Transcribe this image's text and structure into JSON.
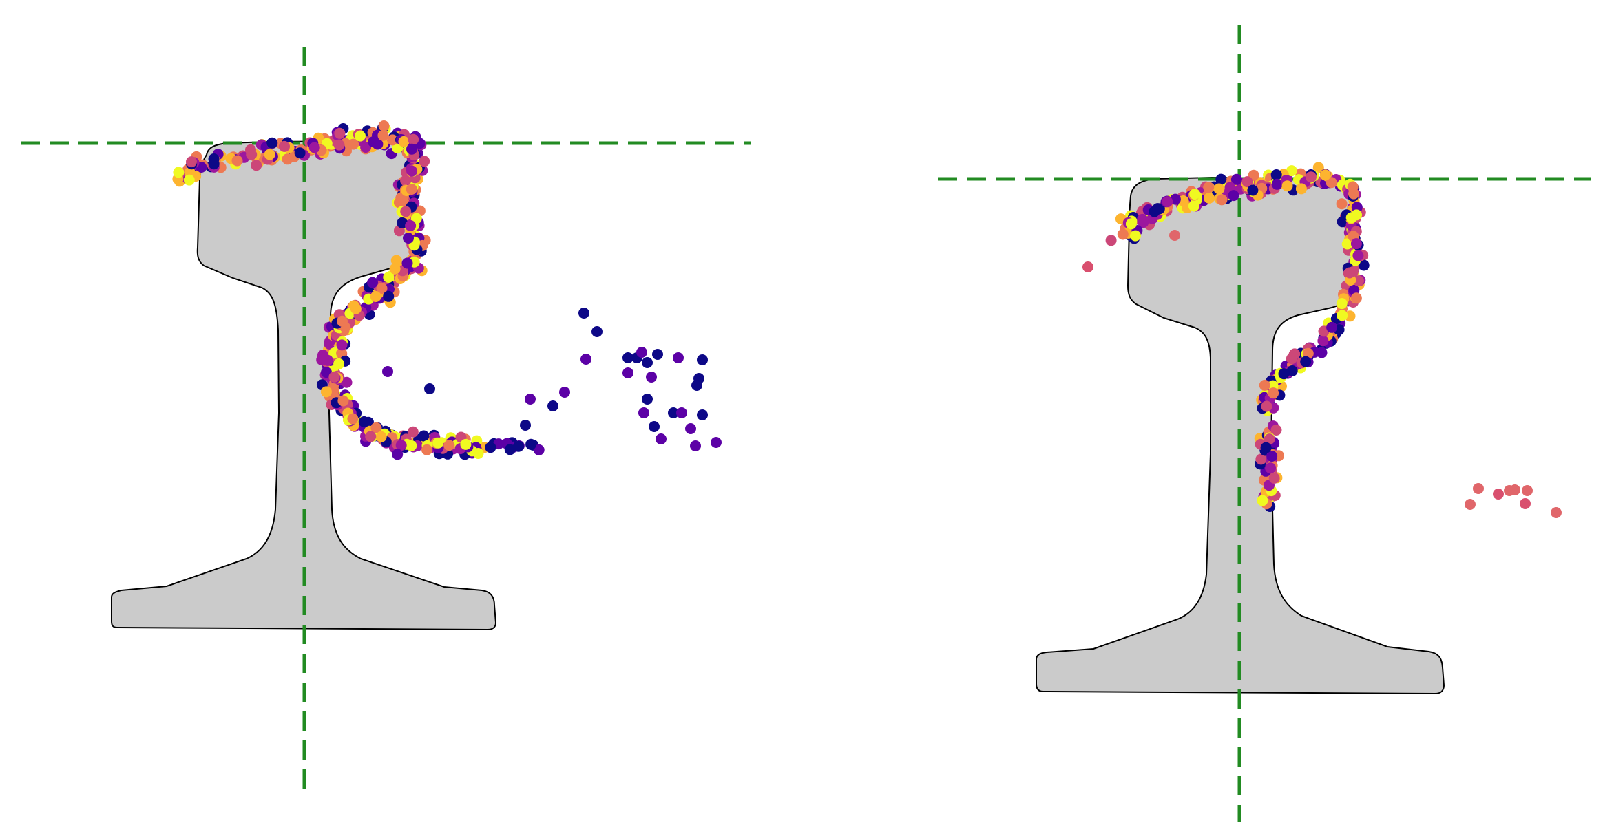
{
  "figure": {
    "panels": [
      {
        "name": "left",
        "rail_color": "#cbcbcb",
        "reference_line_color": "#228B22",
        "colormap": "plasma",
        "point_count_approx": 700
      },
      {
        "name": "right",
        "rail_color": "#cbcbcb",
        "reference_line_color": "#228B22",
        "colormap": "plasma",
        "point_count_approx": 480
      }
    ],
    "plasma_stops": [
      "#0d0887",
      "#5c01a6",
      "#9c179e",
      "#cc4778",
      "#ed7953",
      "#fdb42f",
      "#f0f921"
    ]
  }
}
